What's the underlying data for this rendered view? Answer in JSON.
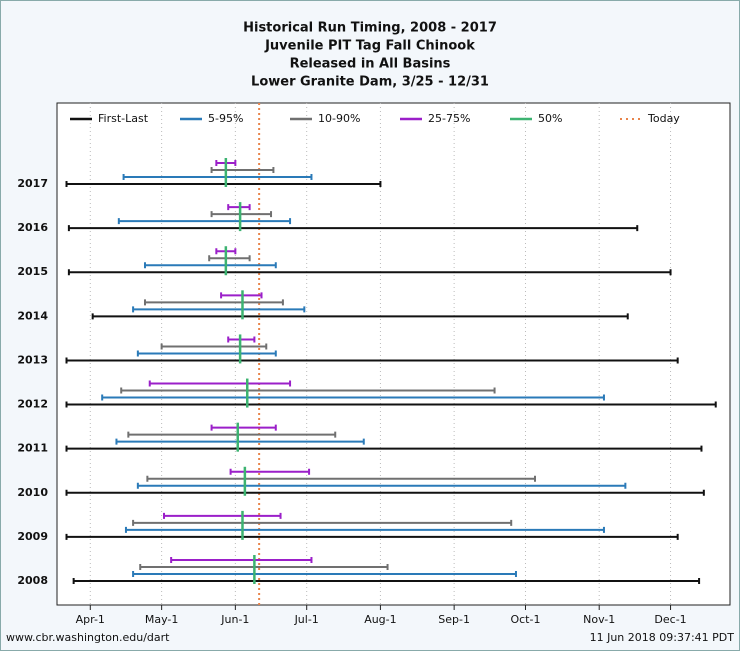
{
  "chart_data": {
    "type": "range",
    "title": [
      "Historical Run Timing, 2008 - 2017",
      "Juvenile PIT Tag Fall Chinook",
      "Released in All Basins",
      "Lower Granite Dam, 3/25 - 12/31"
    ],
    "categories": [
      "2017",
      "2016",
      "2015",
      "2014",
      "2013",
      "2012",
      "2011",
      "2010",
      "2009",
      "2008"
    ],
    "series": [
      {
        "name": "First-Last",
        "color": "#111111",
        "values": [
          [
            81,
            213
          ],
          [
            82,
            321
          ],
          [
            82,
            335
          ],
          [
            92,
            317
          ],
          [
            81,
            338
          ],
          [
            81,
            354
          ],
          [
            81,
            348
          ],
          [
            81,
            349
          ],
          [
            81,
            338
          ],
          [
            84,
            347
          ]
        ]
      },
      {
        "name": "5-95%",
        "color": "#2a7ab8",
        "values": [
          [
            105,
            184
          ],
          [
            103,
            175
          ],
          [
            114,
            169
          ],
          [
            109,
            181
          ],
          [
            111,
            169
          ],
          [
            96,
            307
          ],
          [
            102,
            206
          ],
          [
            111,
            316
          ],
          [
            106,
            307
          ],
          [
            109,
            270
          ]
        ]
      },
      {
        "name": "10-90%",
        "color": "#707070",
        "values": [
          [
            142,
            168
          ],
          [
            142,
            167
          ],
          [
            141,
            158
          ],
          [
            114,
            172
          ],
          [
            121,
            165
          ],
          [
            104,
            261
          ],
          [
            107,
            194
          ],
          [
            115,
            278
          ],
          [
            109,
            268
          ],
          [
            112,
            216
          ]
        ]
      },
      {
        "name": "25-75%",
        "color": "#9b1fc9",
        "values": [
          [
            144,
            152
          ],
          [
            149,
            158
          ],
          [
            144,
            152
          ],
          [
            146,
            163
          ],
          [
            149,
            160
          ],
          [
            116,
            175
          ],
          [
            142,
            169
          ],
          [
            150,
            183
          ],
          [
            122,
            171
          ],
          [
            125,
            184
          ]
        ]
      },
      {
        "name": "50%",
        "color": "#3cb371",
        "values": [
          148,
          154,
          148,
          155,
          154,
          157,
          153,
          156,
          155,
          160
        ]
      }
    ],
    "today": {
      "name": "Today",
      "value": 162,
      "color": "#e8834a"
    },
    "xlim": [
      77,
      360
    ],
    "xticks": [
      {
        "value": 91,
        "label": "Apr-1"
      },
      {
        "value": 121,
        "label": "May-1"
      },
      {
        "value": 152,
        "label": "Jun-1"
      },
      {
        "value": 182,
        "label": "Jul-1"
      },
      {
        "value": 213,
        "label": "Aug-1"
      },
      {
        "value": 244,
        "label": "Sep-1"
      },
      {
        "value": 274,
        "label": "Oct-1"
      },
      {
        "value": 305,
        "label": "Nov-1"
      },
      {
        "value": 335,
        "label": "Dec-1"
      }
    ],
    "grid": true,
    "footer_left": "www.cbr.washington.edu/dart",
    "footer_right": "11 Jun 2018 09:37:41 PDT"
  }
}
